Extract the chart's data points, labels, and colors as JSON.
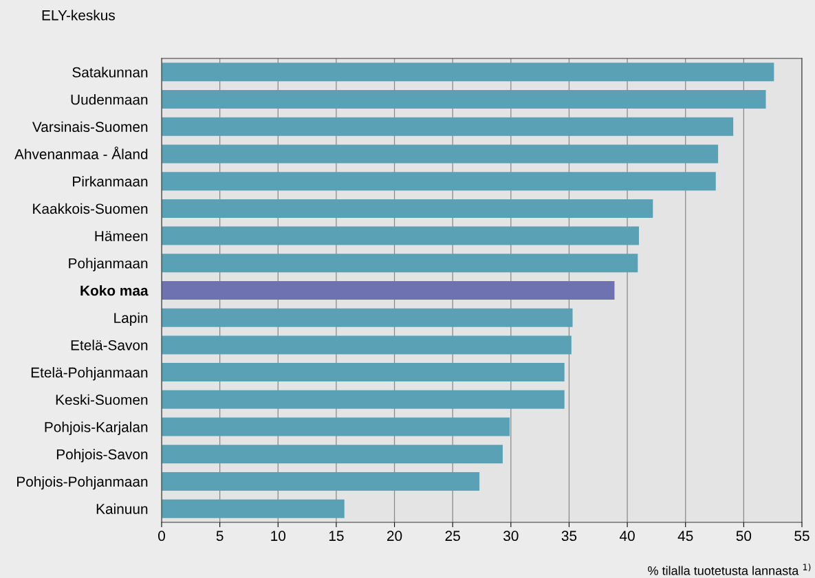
{
  "chart_data": {
    "type": "bar",
    "orientation": "horizontal",
    "ylabel": "ELY-keskus",
    "xlabel": "% tilalla tuotetusta lannasta $^{1)}$",
    "categories": [
      "Satakunnan",
      "Uudenmaan",
      "Varsinais-Suomen",
      "Ahvenanmaa - Åland",
      "Pirkanmaan",
      "Kaakkois-Suomen",
      "Hämeen",
      "Pohjanmaan",
      "Koko maa",
      "Lapin",
      "Etelä-Savon",
      "Etelä-Pohjanmaan",
      "Keski-Suomen",
      "Pohjois-Karjalan",
      "Pohjois-Savon",
      "Pohjois-Pohjanmaan",
      "Kainuun"
    ],
    "values": [
      52.6,
      51.9,
      49.1,
      47.8,
      47.6,
      42.2,
      41.0,
      40.9,
      38.9,
      35.3,
      35.2,
      34.6,
      34.6,
      29.9,
      29.3,
      27.3,
      15.7
    ],
    "colors": [
      "#5aa1b5",
      "#5aa1b5",
      "#5aa1b5",
      "#5aa1b5",
      "#5aa1b5",
      "#5aa1b5",
      "#5aa1b5",
      "#5aa1b5",
      "#6e72b0",
      "#5aa1b5",
      "#5aa1b5",
      "#5aa1b5",
      "#5aa1b5",
      "#5aa1b5",
      "#5aa1b5",
      "#5aa1b5",
      "#5aa1b5"
    ],
    "xlim": [
      0,
      55
    ],
    "xticks": [
      0,
      5,
      10,
      15,
      20,
      25,
      30,
      35,
      40,
      45,
      50,
      55
    ],
    "grid": "x",
    "legend": false
  }
}
